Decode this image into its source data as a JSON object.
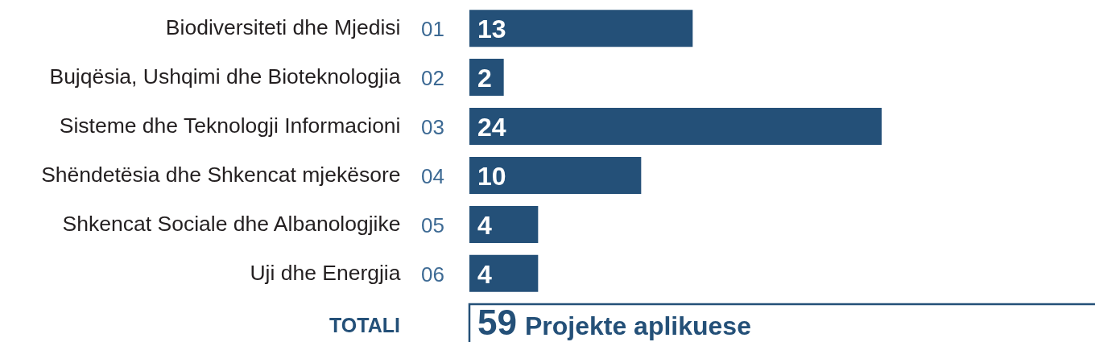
{
  "chart_data": {
    "type": "bar",
    "orientation": "horizontal",
    "categories": [
      "Biodiversiteti dhe Mjedisi",
      "Bujqësia, Ushqimi dhe Bioteknologjia",
      "Sisteme dhe Teknologji Informacioni",
      "Shëndetësia dhe Shkencat mjekësore",
      "Shkencat Sociale dhe Albanologjike",
      "Uji dhe Energjia"
    ],
    "y2_categories": [
      "01",
      "02",
      "03",
      "04",
      "05",
      "06"
    ],
    "values": [
      13,
      2,
      24,
      10,
      4,
      4
    ],
    "color": "#245078",
    "data_labels": true,
    "annotations": [
      "TOTALI",
      "59",
      "Projekte aplikuese"
    ]
  }
}
